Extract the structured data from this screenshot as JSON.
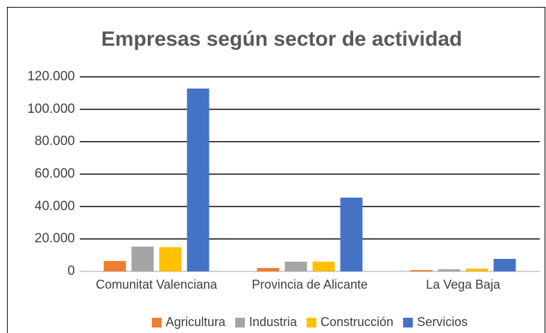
{
  "chart_data": {
    "type": "bar",
    "title": "Empresas según sector de actividad",
    "categories": [
      "Comunitat Valenciana",
      "Provincia de Alicante",
      "La Vega Baja"
    ],
    "series": [
      {
        "name": "Agricultura",
        "color": "#ed7d31",
        "values": [
          6400,
          2100,
          800
        ]
      },
      {
        "name": "Industria",
        "color": "#a5a5a5",
        "values": [
          15300,
          6000,
          1300
        ]
      },
      {
        "name": "Construcción",
        "color": "#ffc000",
        "values": [
          14900,
          6000,
          1700
        ]
      },
      {
        "name": "Servicios",
        "color": "#4472c4",
        "values": [
          112800,
          45500,
          7700
        ]
      }
    ],
    "ylim": [
      0,
      120000
    ],
    "yticks": [
      0,
      {
        "value": 20000,
        "label": "20.000"
      },
      {
        "value": 40000,
        "label": "40.000"
      },
      {
        "value": 60000,
        "label": "60.000"
      },
      {
        "value": 80000,
        "label": "80.000"
      },
      {
        "value": 100000,
        "label": "100.000"
      },
      {
        "value": 120000,
        "label": "120.000"
      }
    ],
    "grid": true,
    "legend": "bottom"
  }
}
